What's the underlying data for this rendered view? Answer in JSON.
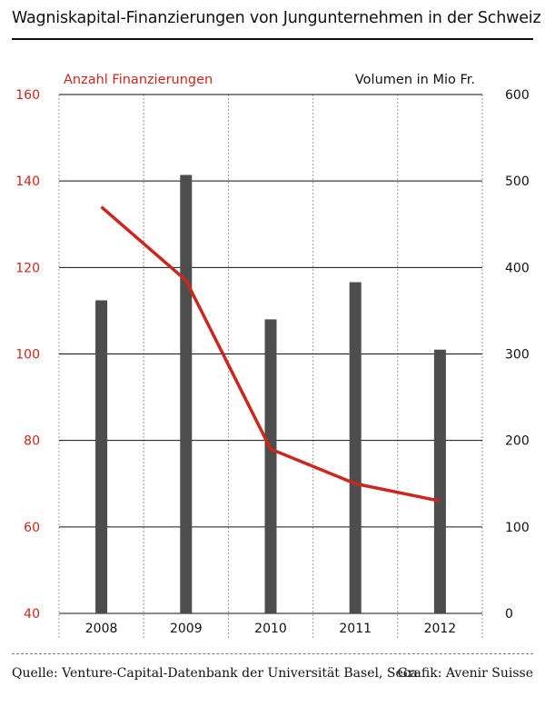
{
  "title": "Wagniskapital-Finanzierungen von Jungunternehmen in der Schweiz",
  "footer": {
    "source": "Quelle: Venture-Capital-Datenbank der Universität Basel, Seca",
    "credit": "Grafik: Avenir Suisse"
  },
  "colors": {
    "line": "#c8281d",
    "bars": "#4d4d4d",
    "grid": "#111111",
    "left_axis": "#c8281d"
  },
  "chart_data": {
    "type": "bar+line",
    "categories": [
      "2008",
      "2009",
      "2010",
      "2011",
      "2012"
    ],
    "series": [
      {
        "name": "Anzahl Finanzierungen",
        "type": "line",
        "axis": "left",
        "values": [
          134,
          117,
          78,
          70,
          66
        ]
      },
      {
        "name": "Volumen in Mio Fr.",
        "type": "bar",
        "axis": "right",
        "values": [
          362,
          507,
          340,
          383,
          305
        ]
      }
    ],
    "left_axis": {
      "range": [
        40,
        160
      ],
      "ticks": [
        "40",
        "60",
        "80",
        "100",
        "120",
        "140",
        "160"
      ]
    },
    "right_axis": {
      "range": [
        0,
        600
      ],
      "ticks": [
        "0",
        "100",
        "200",
        "300",
        "400",
        "500",
        "600"
      ]
    },
    "grid": true,
    "legend": {
      "left": "Anzahl Finanzierungen",
      "right": "Volumen in Mio Fr."
    }
  }
}
